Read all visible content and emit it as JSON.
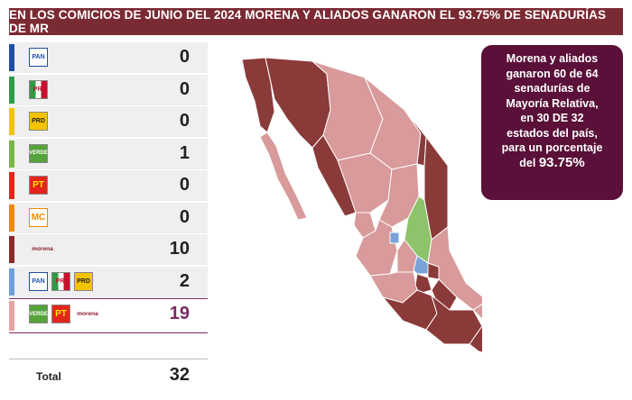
{
  "banner": {
    "title": "EN LOS COMICIOS DE JUNIO DEL 2024 MORENA Y ALIADOS GANARON EL 93.75% DE SENADURÍAS DE MR"
  },
  "rows": [
    {
      "party": "PAN",
      "color": "#1f4fa3",
      "logos": [
        "PAN"
      ],
      "value": "0"
    },
    {
      "party": "PRI",
      "color": "#2e9b47",
      "logos": [
        "PRI"
      ],
      "value": "0"
    },
    {
      "party": "PRD",
      "color": "#f4c400",
      "logos": [
        "PRD"
      ],
      "value": "0"
    },
    {
      "party": "VERDE",
      "color": "#7ab648",
      "logos": [
        "VERDE"
      ],
      "value": "1"
    },
    {
      "party": "PT",
      "color": "#e3251b",
      "logos": [
        "PT"
      ],
      "value": "0"
    },
    {
      "party": "MC",
      "color": "#f08a00",
      "logos": [
        "MC"
      ],
      "value": "0"
    },
    {
      "party": "morena",
      "color": "#8a2a2a",
      "logos": [
        "morena"
      ],
      "value": "10"
    },
    {
      "party": "PAN-PRI-PRD",
      "color": "#6f9fd8",
      "logos": [
        "PAN",
        "PRI",
        "PRD"
      ],
      "value": "2"
    },
    {
      "party": "VERDE-PT-morena",
      "color": "#e8a3a0",
      "logos": [
        "VERDE",
        "PT",
        "morena"
      ],
      "value": "19"
    }
  ],
  "logo_text": {
    "PAN": "PAN",
    "PRI": "PRI",
    "PRD": "PRD",
    "VERDE": "VERDE",
    "PT": "PT",
    "MC": "MC",
    "morena": "morena"
  },
  "total": {
    "label": "Total",
    "value": "32"
  },
  "callout": {
    "lines": [
      "Morena y aliados",
      "ganaron 60 de 64",
      "senadurías de",
      "Mayoría Relativa,",
      "en 30 DE 32",
      "estados del país,",
      "para un porcentaje"
    ],
    "last_prefix": "del",
    "last_big": "93.75%"
  },
  "map_colors": {
    "coalition": "#d89a9a",
    "morena": "#8b3a3a",
    "verde": "#8dc46b",
    "opposition": "#7aa3d8"
  }
}
